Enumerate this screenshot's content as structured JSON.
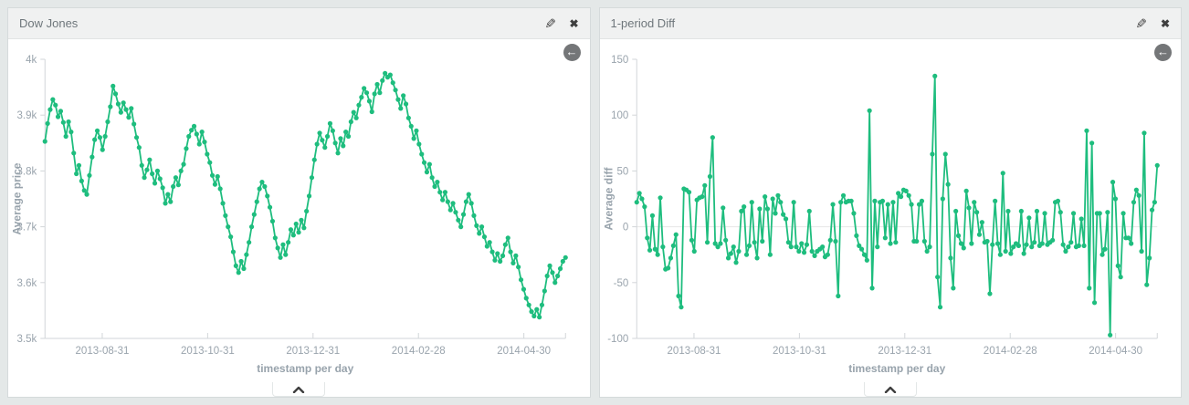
{
  "page": {
    "bg_color": "#e4e8e8"
  },
  "panels": [
    {
      "title": "Dow Jones",
      "edit_icon": "pencil-icon",
      "close_icon": "close-icon",
      "back_icon": "back-arrow-icon",
      "collapse_icon": "chevron-up-icon"
    },
    {
      "title": "1-period Diff",
      "edit_icon": "pencil-icon",
      "close_icon": "close-icon",
      "back_icon": "back-arrow-icon",
      "collapse_icon": "chevron-up-icon"
    }
  ],
  "icons": {
    "back_arrow": "←",
    "edit": "✎",
    "close": "✖"
  },
  "chart_data": [
    {
      "type": "line",
      "title": "Dow Jones",
      "ylabel": "Average price",
      "xlabel": "timestamp per day",
      "series_color": "#1ebd7e",
      "ylim": [
        3500,
        4000
      ],
      "yticks": [
        {
          "v": 4000,
          "label": "4k"
        },
        {
          "v": 3900,
          "label": "3.9k"
        },
        {
          "v": 3800,
          "label": "3.8k"
        },
        {
          "v": 3700,
          "label": "3.7k"
        },
        {
          "v": 3600,
          "label": "3.6k"
        },
        {
          "v": 3500,
          "label": "3.5k"
        }
      ],
      "x_ticks": [
        {
          "label": "2013-08-31",
          "f": 0.11
        },
        {
          "label": "2013-10-31",
          "f": 0.3125
        },
        {
          "label": "2013-12-31",
          "f": 0.515
        },
        {
          "label": "2014-02-28",
          "f": 0.7175
        },
        {
          "label": "2014-04-30",
          "f": 0.92
        }
      ],
      "end_tick": true,
      "zero_line": false,
      "grid": false,
      "legend": "none",
      "values": [
        3853,
        3885,
        3910,
        3928,
        3918,
        3897,
        3907,
        3887,
        3862,
        3888,
        3870,
        3832,
        3795,
        3810,
        3782,
        3765,
        3758,
        3792,
        3825,
        3856,
        3872,
        3860,
        3838,
        3862,
        3888,
        3915,
        3952,
        3938,
        3920,
        3905,
        3922,
        3910,
        3896,
        3912,
        3884,
        3860,
        3842,
        3810,
        3788,
        3802,
        3820,
        3795,
        3778,
        3800,
        3786,
        3770,
        3742,
        3758,
        3745,
        3772,
        3788,
        3775,
        3800,
        3812,
        3840,
        3862,
        3873,
        3880,
        3866,
        3848,
        3870,
        3852,
        3830,
        3815,
        3792,
        3776,
        3790,
        3768,
        3742,
        3720,
        3700,
        3682,
        3655,
        3630,
        3618,
        3638,
        3625,
        3650,
        3672,
        3700,
        3722,
        3745,
        3768,
        3780,
        3772,
        3755,
        3735,
        3710,
        3680,
        3662,
        3645,
        3668,
        3650,
        3672,
        3695,
        3685,
        3705,
        3690,
        3712,
        3698,
        3728,
        3755,
        3788,
        3820,
        3848,
        3868,
        3855,
        3842,
        3862,
        3885,
        3872,
        3850,
        3832,
        3858,
        3845,
        3870,
        3862,
        3888,
        3905,
        3895,
        3918,
        3932,
        3948,
        3940,
        3925,
        3906,
        3938,
        3955,
        3940,
        3962,
        3975,
        3968,
        3972,
        3958,
        3945,
        3928,
        3912,
        3935,
        3920,
        3895,
        3880,
        3858,
        3872,
        3848,
        3830,
        3815,
        3798,
        3812,
        3788,
        3772,
        3780,
        3762,
        3748,
        3762,
        3745,
        3730,
        3742,
        3726,
        3712,
        3700,
        3722,
        3745,
        3758,
        3742,
        3720,
        3702,
        3688,
        3700,
        3682,
        3665,
        3672,
        3655,
        3640,
        3652,
        3638,
        3648,
        3668,
        3680,
        3655,
        3635,
        3648,
        3628,
        3605,
        3588,
        3572,
        3560,
        3548,
        3540,
        3552,
        3538,
        3560,
        3585,
        3612,
        3630,
        3618,
        3600,
        3612,
        3625,
        3638,
        3645
      ]
    },
    {
      "type": "line",
      "title": "1-period Diff",
      "ylabel": "Average diff",
      "xlabel": "timestamp per day",
      "series_color": "#1ebd7e",
      "ylim": [
        -100,
        150
      ],
      "yticks": [
        {
          "v": 150,
          "label": "150"
        },
        {
          "v": 100,
          "label": "100"
        },
        {
          "v": 50,
          "label": "50"
        },
        {
          "v": 0,
          "label": "0"
        },
        {
          "v": -50,
          "label": "-50"
        },
        {
          "v": -100,
          "label": "-100"
        }
      ],
      "x_ticks": [
        {
          "label": "2013-08-31",
          "f": 0.11
        },
        {
          "label": "2013-10-31",
          "f": 0.3125
        },
        {
          "label": "2013-12-31",
          "f": 0.515
        },
        {
          "label": "2014-02-28",
          "f": 0.7175
        },
        {
          "label": "2014-04-30",
          "f": 0.92
        }
      ],
      "end_tick": true,
      "zero_line": true,
      "grid": false,
      "legend": "none",
      "values": [
        22,
        30,
        25,
        18,
        -10,
        -21,
        10,
        -20,
        -25,
        26,
        -18,
        -38,
        -37,
        -28,
        -17,
        -7,
        -62,
        -72,
        34,
        33,
        31,
        -12,
        -22,
        24,
        26,
        27,
        37,
        -14,
        45,
        80,
        -15,
        -18,
        -15,
        17,
        -12,
        -28,
        -24,
        -18,
        -32,
        -22,
        14,
        18,
        -25,
        -17,
        22,
        -14,
        -28,
        16,
        -13,
        27,
        16,
        -25,
        25,
        12,
        28,
        22,
        11,
        7,
        -14,
        -18,
        22,
        -18,
        -22,
        -15,
        -23,
        -16,
        14,
        -22,
        -26,
        -22,
        -20,
        -18,
        -27,
        -25,
        -12,
        20,
        -13,
        -62,
        22,
        28,
        22,
        23,
        23,
        12,
        -8,
        -17,
        -20,
        -25,
        -30,
        104,
        -55,
        23,
        -18,
        22,
        23,
        -10,
        20,
        -15,
        22,
        -14,
        30,
        27,
        33,
        32,
        28,
        20,
        -13,
        -13,
        20,
        23,
        -13,
        -22,
        -18,
        65,
        135,
        -45,
        -72,
        25,
        65,
        38,
        -28,
        -55,
        14,
        -8,
        -15,
        -19,
        32,
        17,
        -15,
        22,
        13,
        -7,
        4,
        -14,
        -13,
        -60,
        -16,
        23,
        -15,
        -25,
        48,
        -22,
        14,
        -24,
        -18,
        -15,
        -17,
        14,
        -24,
        -16,
        8,
        -18,
        -14,
        14,
        -17,
        -15,
        12,
        -16,
        -14,
        -12,
        22,
        23,
        13,
        -16,
        -22,
        -18,
        -14,
        12,
        -18,
        -17,
        7,
        -17,
        86,
        -55,
        75,
        -68,
        12,
        12,
        -25,
        -20,
        13,
        -97,
        40,
        25,
        -35,
        -45,
        12,
        -10,
        -10,
        -15,
        22,
        33,
        28,
        -22,
        84,
        -52,
        -28,
        15,
        22,
        55
      ]
    }
  ]
}
